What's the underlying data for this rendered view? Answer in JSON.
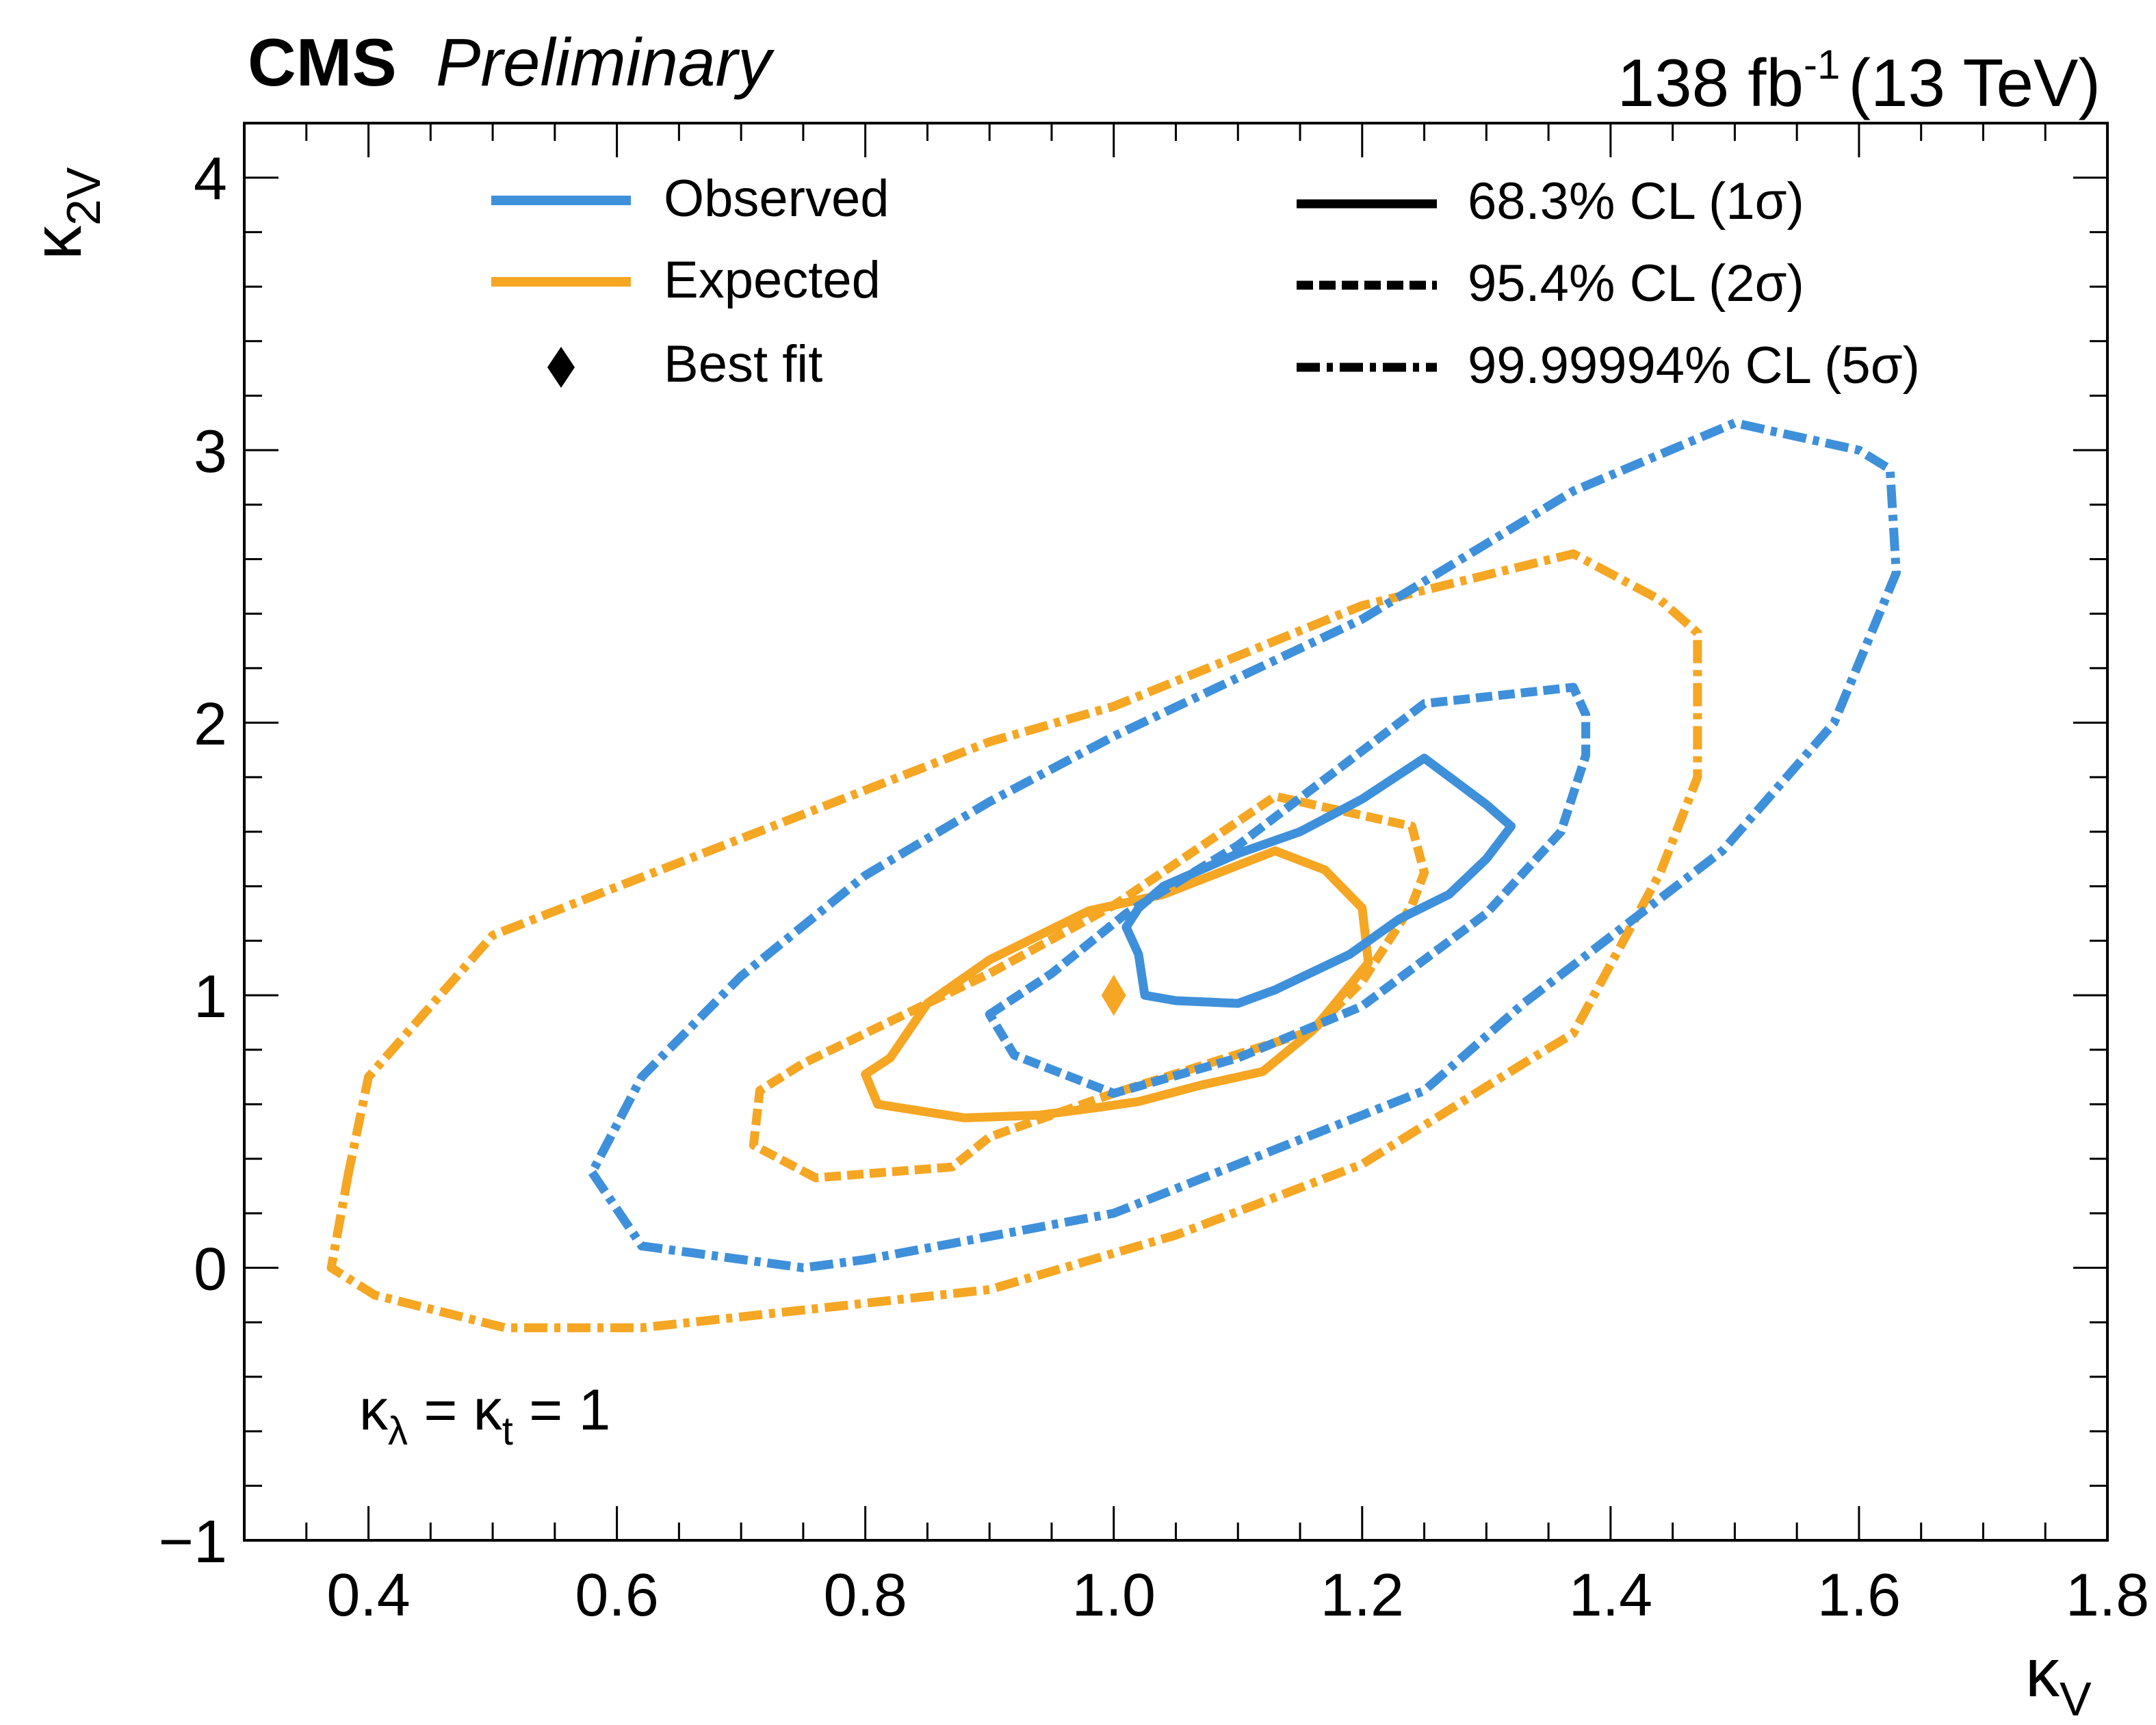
{
  "header": {
    "experiment": "CMS",
    "status": "Preliminary",
    "luminosity": "138 fb",
    "lumi_exponent": "-1",
    "energy": "(13 TeV)"
  },
  "annotation": {
    "symbol": "κ",
    "lambda_sub": "λ",
    "mid": " = κ",
    "t_sub": "t",
    "end": " = 1"
  },
  "colors": {
    "observed": "#3f90da",
    "expected": "#f5a623",
    "axis": "#000000"
  },
  "chart_data": {
    "type": "contour",
    "xlabel": "κ",
    "xlabel_sub": "V",
    "ylabel": "κ",
    "ylabel_sub": "2V",
    "xlim": [
      0.3,
      1.8
    ],
    "ylim": [
      -1,
      4.2
    ],
    "x_ticks": [
      {
        "value": 0.4,
        "label": "0.4"
      },
      {
        "value": 0.6,
        "label": "0.6"
      },
      {
        "value": 0.8,
        "label": "0.8"
      },
      {
        "value": 1.0,
        "label": "1.0"
      },
      {
        "value": 1.2,
        "label": "1.2"
      },
      {
        "value": 1.4,
        "label": "1.4"
      },
      {
        "value": 1.6,
        "label": "1.6"
      },
      {
        "value": 1.8,
        "label": "1.8"
      }
    ],
    "y_ticks": [
      {
        "value": -1,
        "label": "−1"
      },
      {
        "value": 0,
        "label": "0"
      },
      {
        "value": 1,
        "label": "1"
      },
      {
        "value": 2,
        "label": "2"
      },
      {
        "value": 3,
        "label": "3"
      },
      {
        "value": 4,
        "label": "4"
      }
    ],
    "legend": {
      "series": [
        {
          "label": "Observed",
          "color": "observed"
        },
        {
          "label": "Expected",
          "color": "expected"
        },
        {
          "label": "Best fit",
          "marker": "diamond"
        }
      ],
      "levels": [
        {
          "label": "68.3% CL (1σ)",
          "style": "solid"
        },
        {
          "label": "95.4% CL (2σ)",
          "style": "dashed"
        },
        {
          "label": "99.99994% CL (5σ)",
          "style": "dashdot"
        }
      ]
    },
    "best_fit": {
      "x": 1.0,
      "y": 1.0,
      "color": "expected"
    },
    "contours": [
      {
        "name": "expected-5sigma",
        "series": "expected",
        "level": "5sigma",
        "points": [
          [
            0.384,
            0.35
          ],
          [
            0.37,
            0.0
          ],
          [
            0.405,
            -0.1
          ],
          [
            0.51,
            -0.22
          ],
          [
            0.62,
            -0.22
          ],
          [
            0.9,
            -0.08
          ],
          [
            1.05,
            0.12
          ],
          [
            1.2,
            0.38
          ],
          [
            1.33,
            0.75
          ],
          [
            1.37,
            0.86
          ],
          [
            1.44,
            1.45
          ],
          [
            1.47,
            1.8
          ],
          [
            1.47,
            2.33
          ],
          [
            1.44,
            2.45
          ],
          [
            1.37,
            2.62
          ],
          [
            1.2,
            2.43
          ],
          [
            1.0,
            2.06
          ],
          [
            0.9,
            1.93
          ],
          [
            0.5,
            1.22
          ],
          [
            0.4,
            0.7
          ]
        ]
      },
      {
        "name": "expected-2sigma",
        "series": "expected",
        "level": "2sigma",
        "points": [
          [
            0.76,
            0.33
          ],
          [
            0.71,
            0.45
          ],
          [
            0.715,
            0.65
          ],
          [
            0.75,
            0.75
          ],
          [
            0.9,
            1.08
          ],
          [
            1.0,
            1.33
          ],
          [
            1.13,
            1.73
          ],
          [
            1.24,
            1.62
          ],
          [
            1.25,
            1.45
          ],
          [
            1.24,
            1.33
          ],
          [
            1.2,
            1.05
          ],
          [
            1.16,
            0.87
          ],
          [
            1.0,
            0.64
          ],
          [
            0.9,
            0.48
          ],
          [
            0.87,
            0.37
          ]
        ]
      },
      {
        "name": "expected-1sigma",
        "series": "expected",
        "level": "1sigma",
        "points": [
          [
            0.81,
            0.6
          ],
          [
            0.8,
            0.71
          ],
          [
            0.82,
            0.77
          ],
          [
            0.85,
            0.97
          ],
          [
            0.9,
            1.13
          ],
          [
            0.98,
            1.31
          ],
          [
            1.04,
            1.37
          ],
          [
            1.13,
            1.53
          ],
          [
            1.17,
            1.46
          ],
          [
            1.2,
            1.32
          ],
          [
            1.205,
            1.12
          ],
          [
            1.18,
            0.98
          ],
          [
            1.16,
            0.87
          ],
          [
            1.12,
            0.72
          ],
          [
            1.07,
            0.67
          ],
          [
            1.02,
            0.61
          ],
          [
            0.99,
            0.59
          ],
          [
            0.94,
            0.56
          ],
          [
            0.88,
            0.55
          ]
        ]
      },
      {
        "name": "observed-5sigma",
        "series": "observed",
        "level": "5sigma",
        "points": [
          [
            0.58,
            0.35
          ],
          [
            0.62,
            0.08
          ],
          [
            0.75,
            0.0
          ],
          [
            0.8,
            0.03
          ],
          [
            1.0,
            0.2
          ],
          [
            1.25,
            0.65
          ],
          [
            1.33,
            0.97
          ],
          [
            1.49,
            1.53
          ],
          [
            1.58,
            2.0
          ],
          [
            1.63,
            2.55
          ],
          [
            1.625,
            2.93
          ],
          [
            1.6,
            3.0
          ],
          [
            1.5,
            3.1
          ],
          [
            1.37,
            2.85
          ],
          [
            1.2,
            2.38
          ],
          [
            1.0,
            1.95
          ],
          [
            0.9,
            1.71
          ],
          [
            0.8,
            1.44
          ],
          [
            0.7,
            1.07
          ],
          [
            0.62,
            0.7
          ]
        ]
      },
      {
        "name": "observed-2sigma",
        "series": "observed",
        "level": "2sigma",
        "points": [
          [
            0.9,
            0.93
          ],
          [
            0.95,
            1.08
          ],
          [
            1.01,
            1.3
          ],
          [
            1.1,
            1.55
          ],
          [
            1.25,
            2.07
          ],
          [
            1.37,
            2.13
          ],
          [
            1.38,
            2.03
          ],
          [
            1.38,
            1.88
          ],
          [
            1.36,
            1.6
          ],
          [
            1.3,
            1.3
          ],
          [
            1.2,
            0.96
          ],
          [
            1.1,
            0.77
          ],
          [
            1.0,
            0.64
          ],
          [
            0.92,
            0.78
          ]
        ]
      },
      {
        "name": "observed-1sigma",
        "series": "observed",
        "level": "1sigma",
        "points": [
          [
            1.025,
            1.0
          ],
          [
            1.02,
            1.15
          ],
          [
            1.01,
            1.25
          ],
          [
            1.02,
            1.32
          ],
          [
            1.04,
            1.4
          ],
          [
            1.1,
            1.52
          ],
          [
            1.15,
            1.6
          ],
          [
            1.2,
            1.72
          ],
          [
            1.25,
            1.87
          ],
          [
            1.3,
            1.7
          ],
          [
            1.32,
            1.62
          ],
          [
            1.3,
            1.5
          ],
          [
            1.27,
            1.37
          ],
          [
            1.23,
            1.28
          ],
          [
            1.19,
            1.15
          ],
          [
            1.13,
            1.02
          ],
          [
            1.1,
            0.97
          ],
          [
            1.05,
            0.98
          ]
        ]
      }
    ]
  }
}
